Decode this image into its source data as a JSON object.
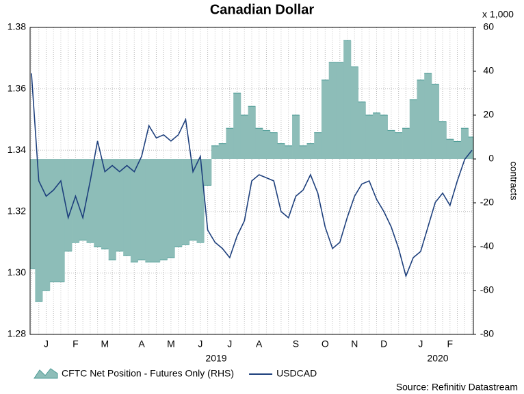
{
  "chart_data": {
    "type": "area-line",
    "title": "Canadian Dollar",
    "categories": [
      null,
      null,
      "J",
      null,
      null,
      null,
      "F",
      null,
      null,
      null,
      "M",
      null,
      null,
      null,
      null,
      "A",
      null,
      null,
      null,
      "M",
      null,
      null,
      null,
      "J",
      null,
      null,
      null,
      "J",
      null,
      null,
      null,
      "A",
      null,
      null,
      null,
      null,
      "S",
      null,
      null,
      null,
      "O",
      null,
      null,
      null,
      "N",
      null,
      null,
      null,
      "D",
      null,
      null,
      null,
      null,
      "J",
      null,
      null,
      null,
      "F",
      null,
      null,
      null
    ],
    "x_group_labels": [
      "2019",
      "2020"
    ],
    "series": [
      {
        "name": "CFTC Net Position - Futures Only (RHS)",
        "color": "#8dbdb8",
        "axis": "y2",
        "values": [
          -50,
          -65,
          -60,
          -56,
          -56,
          -42,
          -38,
          -37,
          -38,
          -40,
          -41,
          -46,
          -42,
          -44,
          -47,
          -46,
          -47,
          -47,
          -46,
          -45,
          -40,
          -39,
          -37,
          -38,
          -12,
          6,
          7,
          14,
          30,
          20,
          24,
          14,
          13,
          12,
          7,
          6,
          20,
          6,
          7,
          12,
          36,
          44,
          44,
          54,
          42,
          26,
          20,
          21,
          20,
          13,
          12,
          14,
          27,
          36,
          39,
          34,
          17,
          9,
          8,
          14,
          10
        ]
      },
      {
        "name": "USDCAD",
        "color": "#1d3f7c",
        "values": [
          1.365,
          1.33,
          1.325,
          1.327,
          1.33,
          1.318,
          1.325,
          1.318,
          1.33,
          1.343,
          1.333,
          1.335,
          1.333,
          1.335,
          1.333,
          1.338,
          1.348,
          1.344,
          1.345,
          1.343,
          1.345,
          1.35,
          1.333,
          1.338,
          1.314,
          1.31,
          1.308,
          1.305,
          1.312,
          1.317,
          1.33,
          1.332,
          1.331,
          1.33,
          1.32,
          1.318,
          1.325,
          1.327,
          1.332,
          1.326,
          1.315,
          1.308,
          1.31,
          1.318,
          1.325,
          1.329,
          1.33,
          1.324,
          1.32,
          1.315,
          1.308,
          1.299,
          1.305,
          1.307,
          1.315,
          1.323,
          1.326,
          1.322,
          1.33,
          1.337,
          1.34
        ]
      }
    ],
    "ylim": [
      1.28,
      1.38
    ],
    "yticks": [
      1.28,
      {
        "value": 1.3,
        "label": "1.30"
      },
      1.32,
      1.34,
      1.36,
      1.38
    ],
    "y2lim": [
      -80,
      60
    ],
    "y2ticks": [
      -80,
      -60,
      -40,
      -20,
      0,
      20,
      40,
      60
    ],
    "y2_unit_label": "x 1,000",
    "y2label": "contracts",
    "grid": true,
    "legend": "bottom",
    "source": "Source: Refinitiv Datastream"
  }
}
